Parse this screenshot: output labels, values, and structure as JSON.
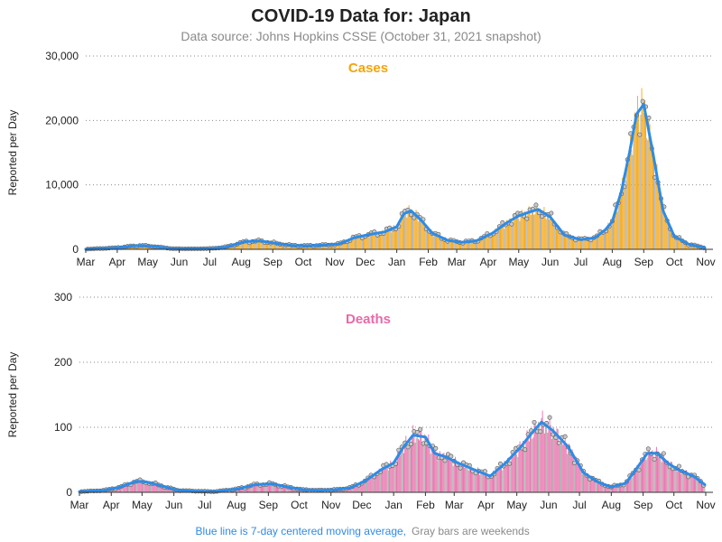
{
  "header": {
    "title": "COVID-19 Data for: Japan",
    "subtitle": "Data source: Johns Hopkins CSSE (October 31, 2021 snapshot)"
  },
  "footer": {
    "avg_note": "Blue line is 7-day centered moving average,",
    "weekend_note": "Gray bars are weekends"
  },
  "colors": {
    "cases": "#F5A40C",
    "deaths": "#E86AA8",
    "moving_average": "#2E8BE6",
    "marker_fill": "#C8C8C8",
    "grid": "#8A8A8A",
    "avg_note": "#2E8BE6",
    "weekend_note": "#8A8A8A"
  },
  "chart_data": [
    {
      "type": "bar",
      "title": "Cases",
      "ylabel": "Reported per Day",
      "x_start": "2020-03",
      "x_end": "2021-11",
      "xtick_labels": [
        "Mar",
        "Apr",
        "May",
        "Jun",
        "Jul",
        "Aug",
        "Sep",
        "Oct",
        "Nov",
        "Dec",
        "Jan",
        "Feb",
        "Mar",
        "Apr",
        "May",
        "Jun",
        "Jul",
        "Aug",
        "Sep",
        "Oct",
        "Nov"
      ],
      "ylim": [
        0,
        30000
      ],
      "yticks": [
        0,
        10000,
        20000,
        30000
      ],
      "ytick_labels": [
        "0",
        "10,000",
        "20,000",
        "30,000"
      ],
      "grid": "horizontal dotted",
      "series": [
        {
          "name": "Moving average",
          "x": [
            "2020-03-01",
            "2020-03-20",
            "2020-04-05",
            "2020-04-15",
            "2020-04-25",
            "2020-05-10",
            "2020-05-25",
            "2020-06-15",
            "2020-07-01",
            "2020-07-15",
            "2020-07-25",
            "2020-08-05",
            "2020-08-20",
            "2020-09-05",
            "2020-09-20",
            "2020-10-05",
            "2020-10-20",
            "2020-11-05",
            "2020-11-20",
            "2020-12-05",
            "2020-12-20",
            "2021-01-01",
            "2021-01-08",
            "2021-01-15",
            "2021-01-25",
            "2021-02-05",
            "2021-02-20",
            "2021-03-05",
            "2021-03-20",
            "2021-04-05",
            "2021-04-20",
            "2021-05-01",
            "2021-05-10",
            "2021-05-20",
            "2021-06-01",
            "2021-06-15",
            "2021-07-01",
            "2021-07-15",
            "2021-07-25",
            "2021-08-01",
            "2021-08-10",
            "2021-08-18",
            "2021-08-25",
            "2021-09-01",
            "2021-09-10",
            "2021-09-20",
            "2021-10-01",
            "2021-10-15",
            "2021-10-31"
          ],
          "values": [
            30,
            150,
            300,
            500,
            600,
            400,
            100,
            80,
            120,
            300,
            700,
            1200,
            1300,
            900,
            600,
            550,
            650,
            800,
            1800,
            2300,
            2700,
            3500,
            5500,
            6000,
            4500,
            2500,
            1400,
            1100,
            1300,
            2500,
            4200,
            5200,
            5700,
            6200,
            5000,
            2200,
            1500,
            1800,
            3000,
            4300,
            9000,
            15000,
            21000,
            22500,
            15000,
            6000,
            2000,
            800,
            250
          ]
        }
      ]
    },
    {
      "type": "bar",
      "title": "Deaths",
      "ylabel": "Reported per Day",
      "x_start": "2020-03",
      "x_end": "2021-11",
      "xtick_labels": [
        "Mar",
        "Apr",
        "May",
        "Jun",
        "Jul",
        "Aug",
        "Sep",
        "Oct",
        "Nov",
        "Dec",
        "Jan",
        "Feb",
        "Mar",
        "Apr",
        "May",
        "Jun",
        "Jul",
        "Aug",
        "Sep",
        "Oct",
        "Nov"
      ],
      "ylim": [
        0,
        300
      ],
      "yticks": [
        0,
        100,
        200,
        300
      ],
      "ytick_labels": [
        "0",
        "100",
        "200",
        "300"
      ],
      "grid": "horizontal dotted",
      "series": [
        {
          "name": "Moving average",
          "x": [
            "2020-03-01",
            "2020-03-25",
            "2020-04-10",
            "2020-04-25",
            "2020-05-05",
            "2020-05-20",
            "2020-06-05",
            "2020-06-20",
            "2020-07-10",
            "2020-08-01",
            "2020-08-20",
            "2020-09-05",
            "2020-09-20",
            "2020-10-05",
            "2020-10-20",
            "2020-11-05",
            "2020-11-20",
            "2020-12-05",
            "2020-12-20",
            "2021-01-01",
            "2021-01-10",
            "2021-01-20",
            "2021-02-01",
            "2021-02-10",
            "2021-02-20",
            "2021-03-05",
            "2021-03-20",
            "2021-04-05",
            "2021-04-20",
            "2021-05-05",
            "2021-05-15",
            "2021-05-25",
            "2021-06-05",
            "2021-06-20",
            "2021-07-05",
            "2021-07-20",
            "2021-08-01",
            "2021-08-15",
            "2021-08-25",
            "2021-09-05",
            "2021-09-15",
            "2021-09-25",
            "2021-10-05",
            "2021-10-20",
            "2021-10-31"
          ],
          "values": [
            1,
            3,
            8,
            17,
            16,
            10,
            3,
            2,
            1,
            5,
            12,
            13,
            8,
            4,
            3,
            4,
            7,
            18,
            35,
            45,
            68,
            88,
            85,
            60,
            55,
            45,
            35,
            25,
            45,
            70,
            90,
            108,
            95,
            70,
            30,
            15,
            8,
            14,
            35,
            60,
            60,
            45,
            35,
            25,
            12
          ]
        }
      ]
    }
  ]
}
